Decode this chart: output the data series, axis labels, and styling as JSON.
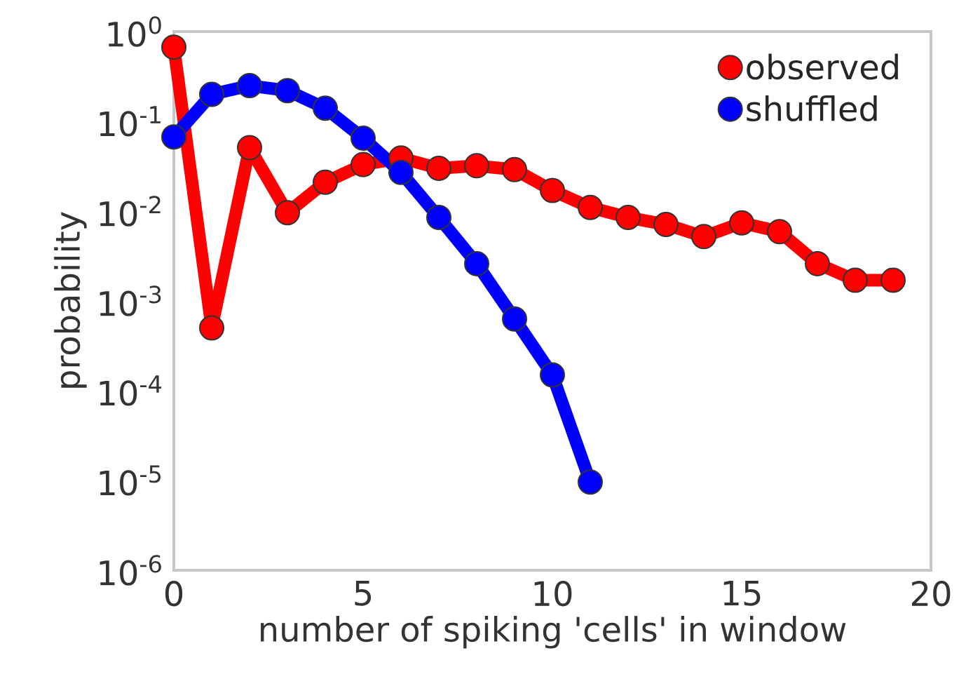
{
  "chart_data": {
    "type": "line",
    "xlabel": "number of spiking 'cells' in window",
    "ylabel": "probability",
    "log": "y",
    "xlim": [
      0,
      20
    ],
    "xticks": [
      0,
      5,
      10,
      15,
      20
    ],
    "ylim": [
      1e-06,
      1
    ],
    "yticks": [
      {
        "value": 1e-06,
        "label": "10$^{-6}$"
      },
      {
        "value": 1e-05,
        "label": "10$^{-5}$"
      },
      {
        "value": 0.0001,
        "label": "10$^{-4}$"
      },
      {
        "value": 0.001,
        "label": "10$^{-3}$"
      },
      {
        "value": 0.01,
        "label": "10$^{-2}$"
      },
      {
        "value": 0.1,
        "label": "10$^{-1}$"
      },
      {
        "value": 1,
        "label": "10$^{0}$"
      }
    ],
    "grid": false,
    "legend": "top right",
    "marker": "circle",
    "line_style": "solid",
    "x": [
      0,
      1,
      2,
      3,
      4,
      5,
      6,
      7,
      8,
      9,
      10,
      11,
      12,
      13,
      14,
      15,
      16,
      17,
      18,
      19
    ],
    "series": [
      {
        "name": "observed",
        "color": "#ff0000",
        "values": [
          0.67,
          0.0005,
          0.051,
          0.0096,
          0.021,
          0.033,
          0.039,
          0.03,
          0.032,
          0.029,
          0.017,
          0.011,
          0.0085,
          0.0071,
          0.0052,
          0.0074,
          0.0059,
          0.0026,
          0.0017,
          0.0017
        ]
      },
      {
        "name": "shuffled",
        "color": "#0000ff",
        "x": [
          0,
          1,
          2,
          3,
          4,
          5,
          6,
          7,
          8,
          9,
          10,
          11
        ],
        "values": [
          0.067,
          0.2,
          0.25,
          0.22,
          0.14,
          0.065,
          0.027,
          0.0085,
          0.0026,
          0.00063,
          0.00015,
          9.6e-06
        ]
      }
    ]
  }
}
